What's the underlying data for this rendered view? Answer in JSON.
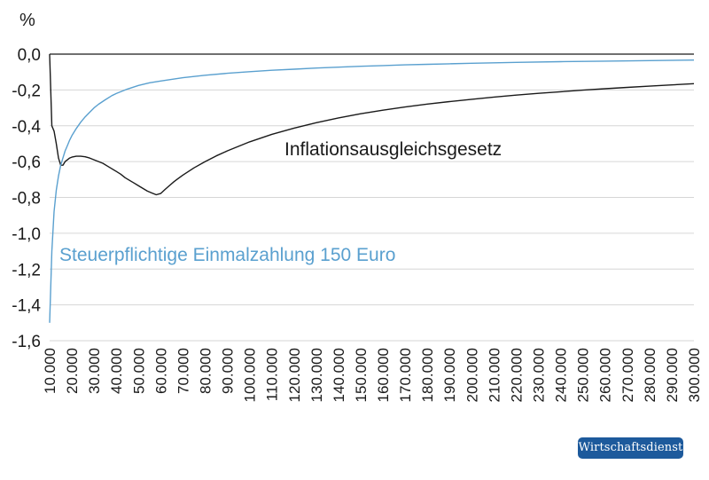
{
  "brand": {
    "name": "Wirtschaftsdienst",
    "color": "#1d5a9c"
  },
  "chart_data": {
    "type": "line",
    "title": "",
    "xlabel": "",
    "ylabel": "%",
    "ylim": [
      -1.6,
      0.0
    ],
    "xlim": [
      10000,
      300000
    ],
    "grid": true,
    "yticks": [
      {
        "value": 0.0,
        "label": "0,0"
      },
      {
        "value": -0.2,
        "label": "-0,2"
      },
      {
        "value": -0.4,
        "label": "-0,4"
      },
      {
        "value": -0.6,
        "label": "-0,6"
      },
      {
        "value": -0.8,
        "label": "-0,8"
      },
      {
        "value": -1.0,
        "label": "-1,0"
      },
      {
        "value": -1.2,
        "label": "-1,2"
      },
      {
        "value": -1.4,
        "label": "-1,4"
      },
      {
        "value": -1.6,
        "label": "-1,6"
      }
    ],
    "xticks": [
      {
        "value": 10000,
        "label": "10.000"
      },
      {
        "value": 20000,
        "label": "20.000"
      },
      {
        "value": 30000,
        "label": "30.000"
      },
      {
        "value": 40000,
        "label": "40.000"
      },
      {
        "value": 50000,
        "label": "50.000"
      },
      {
        "value": 60000,
        "label": "60.000"
      },
      {
        "value": 70000,
        "label": "70.000"
      },
      {
        "value": 80000,
        "label": "80.000"
      },
      {
        "value": 90000,
        "label": "90.000"
      },
      {
        "value": 100000,
        "label": "100.000"
      },
      {
        "value": 110000,
        "label": "110.000"
      },
      {
        "value": 120000,
        "label": "120.000"
      },
      {
        "value": 130000,
        "label": "130.000"
      },
      {
        "value": 140000,
        "label": "140.000"
      },
      {
        "value": 150000,
        "label": "150.000"
      },
      {
        "value": 160000,
        "label": "160.000"
      },
      {
        "value": 170000,
        "label": "170.000"
      },
      {
        "value": 180000,
        "label": "180.000"
      },
      {
        "value": 190000,
        "label": "190.000"
      },
      {
        "value": 200000,
        "label": "200.000"
      },
      {
        "value": 210000,
        "label": "210.000"
      },
      {
        "value": 220000,
        "label": "220.000"
      },
      {
        "value": 230000,
        "label": "230.000"
      },
      {
        "value": 240000,
        "label": "240.000"
      },
      {
        "value": 250000,
        "label": "250.000"
      },
      {
        "value": 260000,
        "label": "260.000"
      },
      {
        "value": 270000,
        "label": "270.000"
      },
      {
        "value": 280000,
        "label": "280.000"
      },
      {
        "value": 290000,
        "label": "290.000"
      },
      {
        "value": 300000,
        "label": "300.000"
      }
    ],
    "series": [
      {
        "name": "Inflationsausgleichsgesetz",
        "color": "#1a1a1a",
        "x": [
          10000,
          11000,
          12000,
          13000,
          14000,
          15000,
          16000,
          17000,
          18000,
          19000,
          20000,
          22000,
          24000,
          26000,
          28000,
          30000,
          32000,
          34000,
          36000,
          38000,
          40000,
          42000,
          44000,
          46000,
          48000,
          50000,
          52000,
          54000,
          56000,
          58000,
          60000,
          62000,
          64000,
          66000,
          68000,
          70000,
          75000,
          80000,
          85000,
          90000,
          100000,
          110000,
          120000,
          130000,
          140000,
          150000,
          160000,
          170000,
          180000,
          190000,
          200000,
          210000,
          220000,
          230000,
          240000,
          250000,
          260000,
          270000,
          280000,
          290000,
          300000
        ],
        "values": [
          0.0,
          -0.4,
          -0.43,
          -0.5,
          -0.58,
          -0.62,
          -0.62,
          -0.6,
          -0.59,
          -0.58,
          -0.575,
          -0.57,
          -0.57,
          -0.573,
          -0.58,
          -0.59,
          -0.6,
          -0.61,
          -0.625,
          -0.64,
          -0.655,
          -0.67,
          -0.69,
          -0.705,
          -0.72,
          -0.735,
          -0.75,
          -0.765,
          -0.775,
          -0.785,
          -0.778,
          -0.755,
          -0.733,
          -0.712,
          -0.693,
          -0.675,
          -0.635,
          -0.6,
          -0.568,
          -0.54,
          -0.49,
          -0.448,
          -0.413,
          -0.383,
          -0.356,
          -0.333,
          -0.313,
          -0.295,
          -0.279,
          -0.265,
          -0.252,
          -0.24,
          -0.229,
          -0.219,
          -0.21,
          -0.201,
          -0.193,
          -0.186,
          -0.179,
          -0.172,
          -0.165
        ]
      },
      {
        "name": "Steuerpflichtige Einmalzahlung 150 Euro",
        "color": "#5aa0cf",
        "x": [
          10000,
          11000,
          12000,
          13000,
          14000,
          15000,
          16000,
          17000,
          18000,
          19000,
          20000,
          22000,
          24000,
          26000,
          28000,
          30000,
          32000,
          35000,
          38000,
          40000,
          45000,
          50000,
          55000,
          60000,
          70000,
          80000,
          90000,
          100000,
          110000,
          120000,
          130000,
          140000,
          150000,
          160000,
          170000,
          180000,
          190000,
          200000,
          220000,
          240000,
          260000,
          280000,
          300000
        ],
        "values": [
          -1.5,
          -1.1,
          -0.88,
          -0.76,
          -0.68,
          -0.62,
          -0.58,
          -0.54,
          -0.51,
          -0.48,
          -0.455,
          -0.415,
          -0.38,
          -0.35,
          -0.325,
          -0.3,
          -0.28,
          -0.255,
          -0.232,
          -0.22,
          -0.195,
          -0.175,
          -0.16,
          -0.15,
          -0.132,
          -0.118,
          -0.107,
          -0.098,
          -0.09,
          -0.084,
          -0.078,
          -0.073,
          -0.068,
          -0.064,
          -0.06,
          -0.057,
          -0.054,
          -0.051,
          -0.046,
          -0.042,
          -0.039,
          -0.036,
          -0.033
        ]
      }
    ]
  }
}
